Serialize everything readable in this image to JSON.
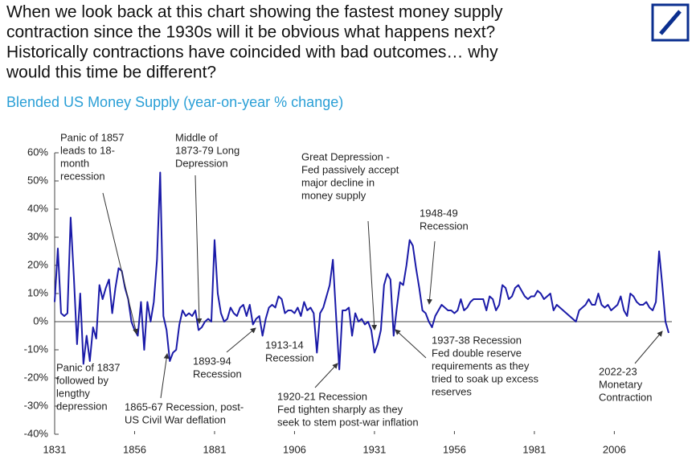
{
  "chart_data": {
    "type": "line",
    "title": [
      "When we look back at this chart showing the fastest money supply",
      "contraction since the 1930s will it be obvious what happens next?",
      "Historically contractions have coincided with bad outcomes… why",
      "would this time be different?"
    ],
    "subtitle": "Blended US Money Supply (year-on-year % change)",
    "x": [
      1831,
      1832,
      1833,
      1834,
      1835,
      1836,
      1837,
      1838,
      1839,
      1840,
      1841,
      1842,
      1843,
      1844,
      1845,
      1846,
      1847,
      1848,
      1849,
      1850,
      1851,
      1852,
      1853,
      1854,
      1855,
      1856,
      1857,
      1858,
      1859,
      1860,
      1861,
      1862,
      1863,
      1864,
      1865,
      1866,
      1867,
      1868,
      1869,
      1870,
      1871,
      1872,
      1873,
      1874,
      1875,
      1876,
      1877,
      1878,
      1879,
      1880,
      1881,
      1882,
      1883,
      1884,
      1885,
      1886,
      1887,
      1888,
      1889,
      1890,
      1891,
      1892,
      1893,
      1894,
      1895,
      1896,
      1897,
      1898,
      1899,
      1900,
      1901,
      1902,
      1903,
      1904,
      1905,
      1906,
      1907,
      1908,
      1909,
      1910,
      1911,
      1912,
      1913,
      1914,
      1915,
      1916,
      1917,
      1918,
      1919,
      1920,
      1921,
      1922,
      1923,
      1924,
      1925,
      1926,
      1927,
      1928,
      1929,
      1930,
      1931,
      1932,
      1933,
      1934,
      1935,
      1936,
      1937,
      1938,
      1939,
      1940,
      1941,
      1942,
      1943,
      1944,
      1945,
      1946,
      1947,
      1948,
      1949,
      1950,
      1951,
      1952,
      1953,
      1954,
      1955,
      1956,
      1957,
      1958,
      1959,
      1960,
      1961,
      1962,
      1963,
      1964,
      1965,
      1966,
      1967,
      1968,
      1969,
      1970,
      1971,
      1972,
      1973,
      1974,
      1975,
      1976,
      1977,
      1978,
      1979,
      1980,
      1981,
      1982,
      1983,
      1984,
      1985,
      1986,
      1987,
      1988,
      1989,
      1990,
      1991,
      1992,
      1993,
      1994,
      1995,
      1996,
      1997,
      1998,
      1999,
      2000,
      2001,
      2002,
      2003,
      2004,
      2005,
      2006,
      2007,
      2008,
      2009,
      2010,
      2011,
      2012,
      2013,
      2014,
      2015,
      2016,
      2017,
      2018,
      2019,
      2020,
      2021,
      2022,
      2023
    ],
    "series": [
      {
        "color": "#1a1aa8",
        "values": [
          7,
          26,
          3,
          2,
          3,
          37,
          16,
          -8,
          10,
          -15,
          -5,
          -14,
          -2,
          -6,
          13,
          8,
          12,
          15,
          3,
          12,
          19,
          18,
          12,
          8,
          0,
          -3,
          -5,
          7,
          -10,
          7,
          0,
          7,
          22,
          53,
          2,
          -3,
          -14,
          -11,
          -10,
          -1,
          4,
          2,
          3,
          2,
          4,
          -3,
          -2,
          0,
          1,
          0,
          29,
          10,
          3,
          0,
          1,
          5,
          3,
          2,
          5,
          6,
          2,
          6,
          -1,
          1,
          2,
          -5,
          1,
          5,
          6,
          5,
          9,
          8,
          3,
          4,
          4,
          3,
          5,
          2,
          7,
          4,
          5,
          3,
          -11,
          3,
          5,
          9,
          13,
          22,
          2,
          -17,
          4,
          4,
          5,
          -5,
          3,
          0,
          1,
          -1,
          0,
          -3,
          -11,
          -8,
          -3,
          13,
          17,
          15,
          -5,
          5,
          14,
          13,
          20,
          29,
          27,
          19,
          12,
          4,
          3,
          0,
          -2,
          2,
          4,
          6,
          5,
          4,
          4,
          3,
          4,
          8,
          4,
          5,
          7,
          8,
          8,
          8,
          8,
          4,
          9,
          8,
          4,
          6,
          13,
          12,
          8,
          9,
          12,
          13,
          11,
          9,
          8,
          9,
          9,
          11,
          10,
          8,
          9,
          10,
          4,
          6,
          5,
          4,
          3,
          2,
          1,
          0,
          4,
          5,
          6,
          8,
          6,
          6,
          10,
          6,
          5,
          6,
          4,
          5,
          6,
          9,
          4,
          2,
          10,
          9,
          7,
          6,
          6,
          7,
          5,
          4,
          7,
          25,
          13,
          0,
          -4
        ]
      }
    ],
    "xlim": [
      1831,
      2024
    ],
    "xticks": [
      1831,
      1856,
      1881,
      1906,
      1931,
      1956,
      1981,
      2006
    ],
    "ylim": [
      -40,
      60
    ],
    "yticks": [
      {
        "value": -40,
        "label": "-40%"
      },
      {
        "value": -30,
        "label": "-30%"
      },
      {
        "value": -20,
        "label": "-20%"
      },
      {
        "value": -10,
        "label": "-10%"
      },
      {
        "value": 0,
        "label": "0%"
      },
      {
        "value": 10,
        "label": "10%"
      },
      {
        "value": 20,
        "label": "20%"
      },
      {
        "value": 30,
        "label": "30%"
      },
      {
        "value": 40,
        "label": "40%"
      },
      {
        "value": 50,
        "label": "50%"
      },
      {
        "value": 60,
        "label": "60%"
      }
    ],
    "annotations": [
      [
        "Panic of 1857",
        "leads to 18-",
        "month",
        "recession"
      ],
      [
        "Middle of",
        "1873-79 Long",
        "Depression"
      ],
      [
        "Great Depression -",
        "Fed passively accept",
        "major decline in",
        "money supply"
      ],
      [
        "1948-49",
        "Recession"
      ],
      [
        "Panic of 1837",
        "followed by",
        "lengthy",
        "depression"
      ],
      [
        "1865-67 Recession, post-",
        "US Civil War deflation"
      ],
      [
        "1893-94",
        "Recession"
      ],
      [
        "1913-14",
        "Recession"
      ],
      [
        "1920-21 Recession",
        "Fed tighten sharply as they",
        "seek to stem post-war inflation"
      ],
      [
        "1937-38 Recession",
        "Fed double reserve",
        "requirements as they",
        "tried to soak up excess",
        "reserves"
      ],
      [
        "2022-23",
        "Monetary",
        "Contraction"
      ]
    ]
  }
}
